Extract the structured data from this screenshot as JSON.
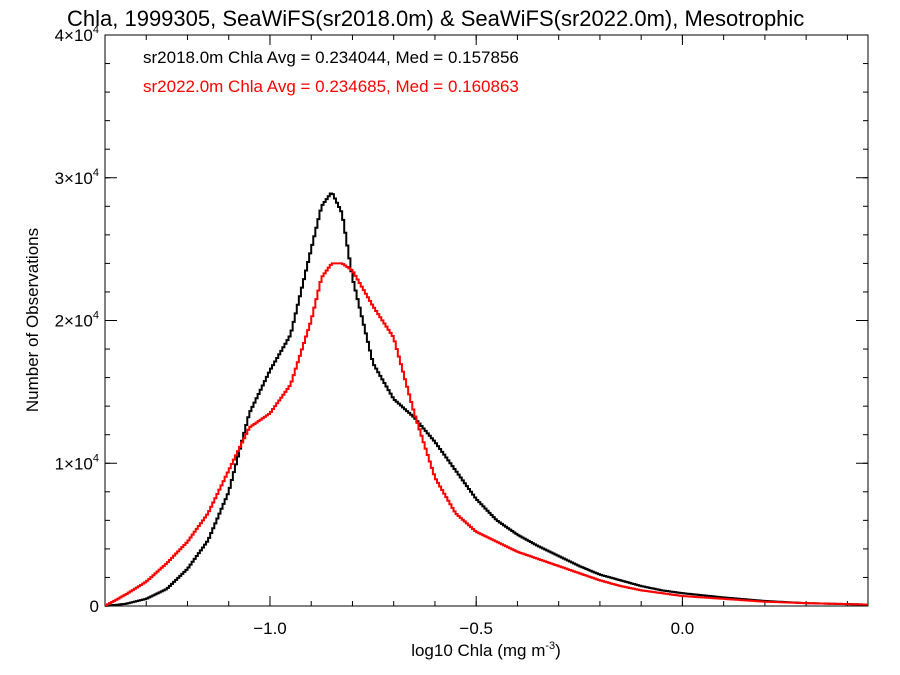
{
  "chart_data": {
    "type": "line",
    "title": "Chla, 1999305, SeaWiFS(sr2018.0m) & SeaWiFS(sr2022.0m), Mesotrophic",
    "xlabel": "log10 Chla (mg m",
    "xlabel_sup": "-3",
    "xlabel_end": ")",
    "ylabel": "Number of Observations",
    "xlim": [
      -1.4,
      0.45
    ],
    "ylim": [
      0,
      40000
    ],
    "grid": false,
    "x_ticks": [
      {
        "value": -1.0,
        "label": "−1.0"
      },
      {
        "value": -0.5,
        "label": "−0.5"
      },
      {
        "value": 0.0,
        "label": "0.0"
      }
    ],
    "y_ticks": [
      {
        "value": 0,
        "mant": "0",
        "exp": ""
      },
      {
        "value": 10000,
        "mant": "1×10",
        "exp": "4"
      },
      {
        "value": 20000,
        "mant": "2×10",
        "exp": "4"
      },
      {
        "value": 30000,
        "mant": "3×10",
        "exp": "4"
      },
      {
        "value": 40000,
        "mant": "4×10",
        "exp": "4"
      }
    ],
    "annotations": [
      {
        "text": "sr2018.0m Chla Avg = 0.234044, Med = 0.157856",
        "color": "#000000"
      },
      {
        "text": "sr2022.0m Chla Avg = 0.234685, Med = 0.160863",
        "color": "#ff0000"
      }
    ],
    "x": [
      -1.4,
      -1.35,
      -1.3,
      -1.25,
      -1.2,
      -1.15,
      -1.1,
      -1.05,
      -1.0,
      -0.95,
      -0.9,
      -0.875,
      -0.85,
      -0.825,
      -0.8,
      -0.75,
      -0.7,
      -0.65,
      -0.6,
      -0.55,
      -0.5,
      -0.45,
      -0.4,
      -0.35,
      -0.3,
      -0.25,
      -0.2,
      -0.15,
      -0.1,
      -0.05,
      0.0,
      0.1,
      0.2,
      0.3,
      0.45
    ],
    "series": [
      {
        "color": "#000000",
        "values": [
          0,
          150,
          500,
          1200,
          2600,
          4600,
          8000,
          13500,
          16500,
          19000,
          25000,
          28000,
          29000,
          27500,
          23000,
          17000,
          14500,
          13200,
          11500,
          9500,
          7500,
          6000,
          5000,
          4200,
          3500,
          2800,
          2200,
          1800,
          1400,
          1100,
          900,
          600,
          350,
          200,
          100
        ]
      },
      {
        "color": "#ff0000",
        "values": [
          0,
          800,
          1700,
          3000,
          4500,
          6500,
          9500,
          12500,
          13500,
          15500,
          20000,
          23000,
          24000,
          24000,
          23500,
          21000,
          18800,
          13500,
          9000,
          6500,
          5200,
          4500,
          3800,
          3300,
          2800,
          2300,
          1800,
          1400,
          1100,
          900,
          700,
          500,
          300,
          200,
          100
        ]
      }
    ]
  }
}
